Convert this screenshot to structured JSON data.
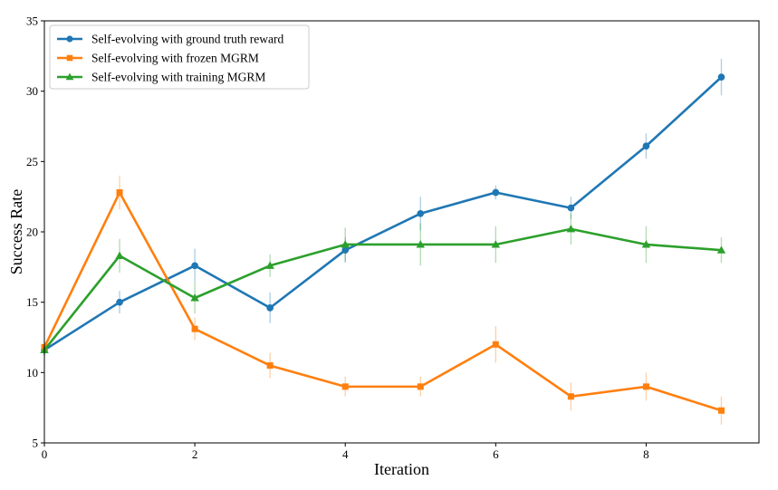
{
  "chart_data": {
    "type": "line",
    "xlabel": "Iteration",
    "ylabel": "Success Rate",
    "x": [
      0,
      1,
      2,
      3,
      4,
      5,
      6,
      7,
      8,
      9
    ],
    "xlim": [
      0,
      9.5
    ],
    "ylim": [
      5,
      35
    ],
    "xticks": [
      0,
      2,
      4,
      6,
      8
    ],
    "yticks": [
      5,
      10,
      15,
      20,
      25,
      30,
      35
    ],
    "grid": false,
    "legend_position": "top-left",
    "series": [
      {
        "name": "Self-evolving with ground truth reward",
        "color": "#1f77b4",
        "marker": "circle",
        "values": [
          11.6,
          15.0,
          17.6,
          14.6,
          18.7,
          21.3,
          22.8,
          21.7,
          26.1,
          31.0
        ],
        "errors": [
          0.4,
          0.8,
          1.2,
          1.1,
          0.9,
          1.2,
          0.5,
          0.8,
          0.9,
          1.3
        ]
      },
      {
        "name": "Self-evolving with frozen MGRM",
        "color": "#ff7f0e",
        "marker": "square",
        "values": [
          11.8,
          22.8,
          13.1,
          10.5,
          9.0,
          9.0,
          12.0,
          8.3,
          9.0,
          7.3
        ],
        "errors": [
          0.4,
          1.2,
          0.8,
          0.9,
          0.7,
          0.7,
          1.3,
          1.0,
          1.0,
          1.0
        ]
      },
      {
        "name": "Self-evolving with training MGRM",
        "color": "#2ca02c",
        "marker": "triangle",
        "values": [
          11.6,
          18.3,
          15.3,
          17.6,
          19.1,
          19.1,
          19.1,
          20.2,
          19.1,
          18.7
        ],
        "errors": [
          0.4,
          1.2,
          1.1,
          0.8,
          1.2,
          1.5,
          1.3,
          1.1,
          1.3,
          0.9
        ]
      }
    ]
  }
}
